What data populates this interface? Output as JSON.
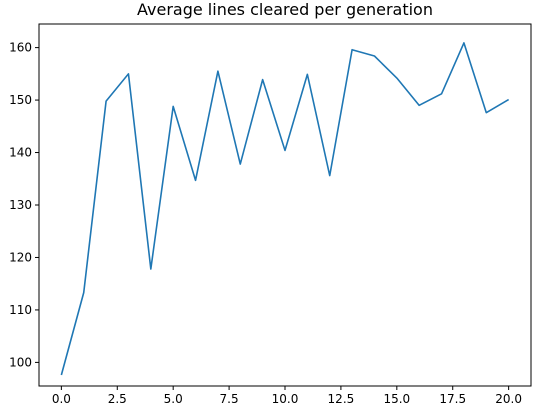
{
  "chart_data": {
    "type": "line",
    "title": "Average lines cleared per generation",
    "xlabel": "",
    "ylabel": "",
    "xlim": [
      -1.0,
      21.0
    ],
    "ylim": [
      95.5,
      164.5
    ],
    "xticks": [
      0.0,
      2.5,
      5.0,
      7.5,
      10.0,
      12.5,
      15.0,
      17.5,
      20.0
    ],
    "xtick_labels": [
      "0.0",
      "2.5",
      "5.0",
      "7.5",
      "10.0",
      "12.5",
      "15.0",
      "17.5",
      "20.0"
    ],
    "yticks": [
      100,
      110,
      120,
      130,
      140,
      150,
      160
    ],
    "ytick_labels": [
      "100",
      "110",
      "120",
      "130",
      "140",
      "150",
      "160"
    ],
    "grid": false,
    "line_color": "#1f77b4",
    "x": [
      0,
      1,
      2,
      3,
      4,
      5,
      6,
      7,
      8,
      9,
      10,
      11,
      12,
      13,
      14,
      15,
      16,
      17,
      18,
      19,
      20
    ],
    "y": [
      97.6,
      113.3,
      149.8,
      155.0,
      117.8,
      148.8,
      134.7,
      155.5,
      137.8,
      153.9,
      140.4,
      154.9,
      135.6,
      159.6,
      158.4,
      154.2,
      149.0,
      151.2,
      160.9,
      147.6,
      150.1
    ]
  }
}
